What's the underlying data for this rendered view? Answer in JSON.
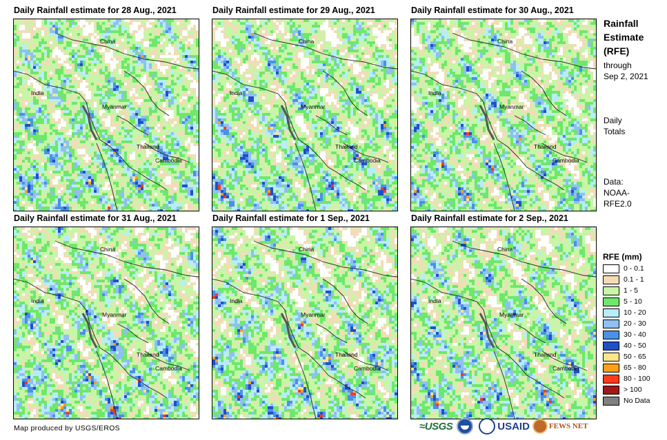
{
  "panels": [
    {
      "title": "Daily Rainfall estimate for 28 Aug., 2021",
      "seed": 28,
      "wet": 0.55
    },
    {
      "title": "Daily Rainfall estimate for 29 Aug., 2021",
      "seed": 29,
      "wet": 0.6
    },
    {
      "title": "Daily Rainfall estimate for 30 Aug., 2021",
      "seed": 30,
      "wet": 0.45
    },
    {
      "title": "Daily Rainfall estimate for 31 Aug., 2021",
      "seed": 31,
      "wet": 0.6
    },
    {
      "title": "Daily Rainfall estimate for 1 Sep., 2021",
      "seed": 1,
      "wet": 0.65
    },
    {
      "title": "Daily Rainfall estimate for 2 Sep., 2021",
      "seed": 2,
      "wet": 0.6
    }
  ],
  "map_labels": {
    "china": "China",
    "india": "India",
    "myanmar": "Myanmar",
    "thailand": "Thailand",
    "cambodia": "Cambodia"
  },
  "sidebar": {
    "title_line1": "Rainfall",
    "title_line2": "Estimate",
    "title_line3": "(RFE)",
    "through_line1": "through",
    "through_line2": "Sep 2, 2021",
    "daily_line1": "Daily",
    "daily_line2": "Totals",
    "data_line1": "Data:",
    "data_line2": "NOAA-",
    "data_line3": "RFE2.0"
  },
  "legend": {
    "title": "RFE (mm)",
    "items": [
      {
        "label": "0 - 0.1",
        "color": "#ffffff"
      },
      {
        "label": "0.1 - 1",
        "color": "#f2dcb8"
      },
      {
        "label": "1 - 5",
        "color": "#c8f5a6"
      },
      {
        "label": "5 - 10",
        "color": "#6ee86a"
      },
      {
        "label": "10 - 20",
        "color": "#b8ecf7"
      },
      {
        "label": "20 - 30",
        "color": "#8fc0f0"
      },
      {
        "label": "30 - 40",
        "color": "#4a90e6"
      },
      {
        "label": "40 - 50",
        "color": "#2050c8"
      },
      {
        "label": "50 - 65",
        "color": "#fde68a"
      },
      {
        "label": "65 - 80",
        "color": "#ff9f1a"
      },
      {
        "label": "80 - 100",
        "color": "#ff3b1a"
      },
      {
        "label": "> 100",
        "color": "#a01818"
      },
      {
        "label": "No Data",
        "color": "#808080"
      }
    ]
  },
  "credit": "Map produced by USGS/EROS",
  "logos": {
    "usgs": "≈USGS",
    "usaid": "USAID",
    "fews": "FEWS NET"
  }
}
